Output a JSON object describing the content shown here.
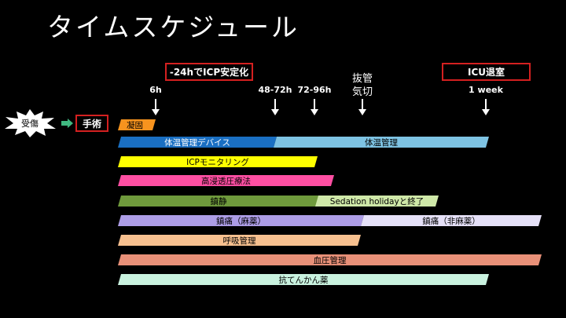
{
  "title": "タイムスケジュール",
  "start": {
    "injury": "受傷",
    "surgery": "手術"
  },
  "callouts": {
    "icp": "-24hでICP安定化",
    "icu": "ICU退室"
  },
  "ticks": [
    {
      "label": "6h"
    },
    {
      "label": "48-72h"
    },
    {
      "label": "72-96h"
    },
    {
      "label": "抜管\n気切"
    },
    {
      "label": "1 week"
    }
  ],
  "bars": {
    "coagulation": {
      "label": "凝固",
      "color": "#f7931e"
    },
    "temp_device": {
      "label": "体温管理デバイス",
      "color": "#1a6fc2"
    },
    "temp_mgmt": {
      "label": "体温管理",
      "color": "#7ec3e3"
    },
    "icp_monitor": {
      "label": "ICPモニタリング",
      "color": "#ffff00"
    },
    "hyperosmotic": {
      "label": "高浸透圧療法",
      "color": "#ff4fa3"
    },
    "sedation": {
      "label": "鎮静",
      "color": "#6f9a3c"
    },
    "sedation_holiday": {
      "label": "Sedation holidayと終了",
      "color": "#cfe8a8"
    },
    "analgesia_opioid": {
      "label": "鎮痛（麻薬）",
      "color": "#ad9de6"
    },
    "analgesia_nonopioid": {
      "label": "鎮痛（非麻薬）",
      "color": "#e5e0f7"
    },
    "respiratory": {
      "label": "呼吸管理",
      "color": "#f7c08f"
    },
    "bp_mgmt": {
      "label": "血圧管理",
      "color": "#e89078"
    },
    "antiepileptic": {
      "label": "抗てんかん薬",
      "color": "#c9f2df"
    }
  }
}
